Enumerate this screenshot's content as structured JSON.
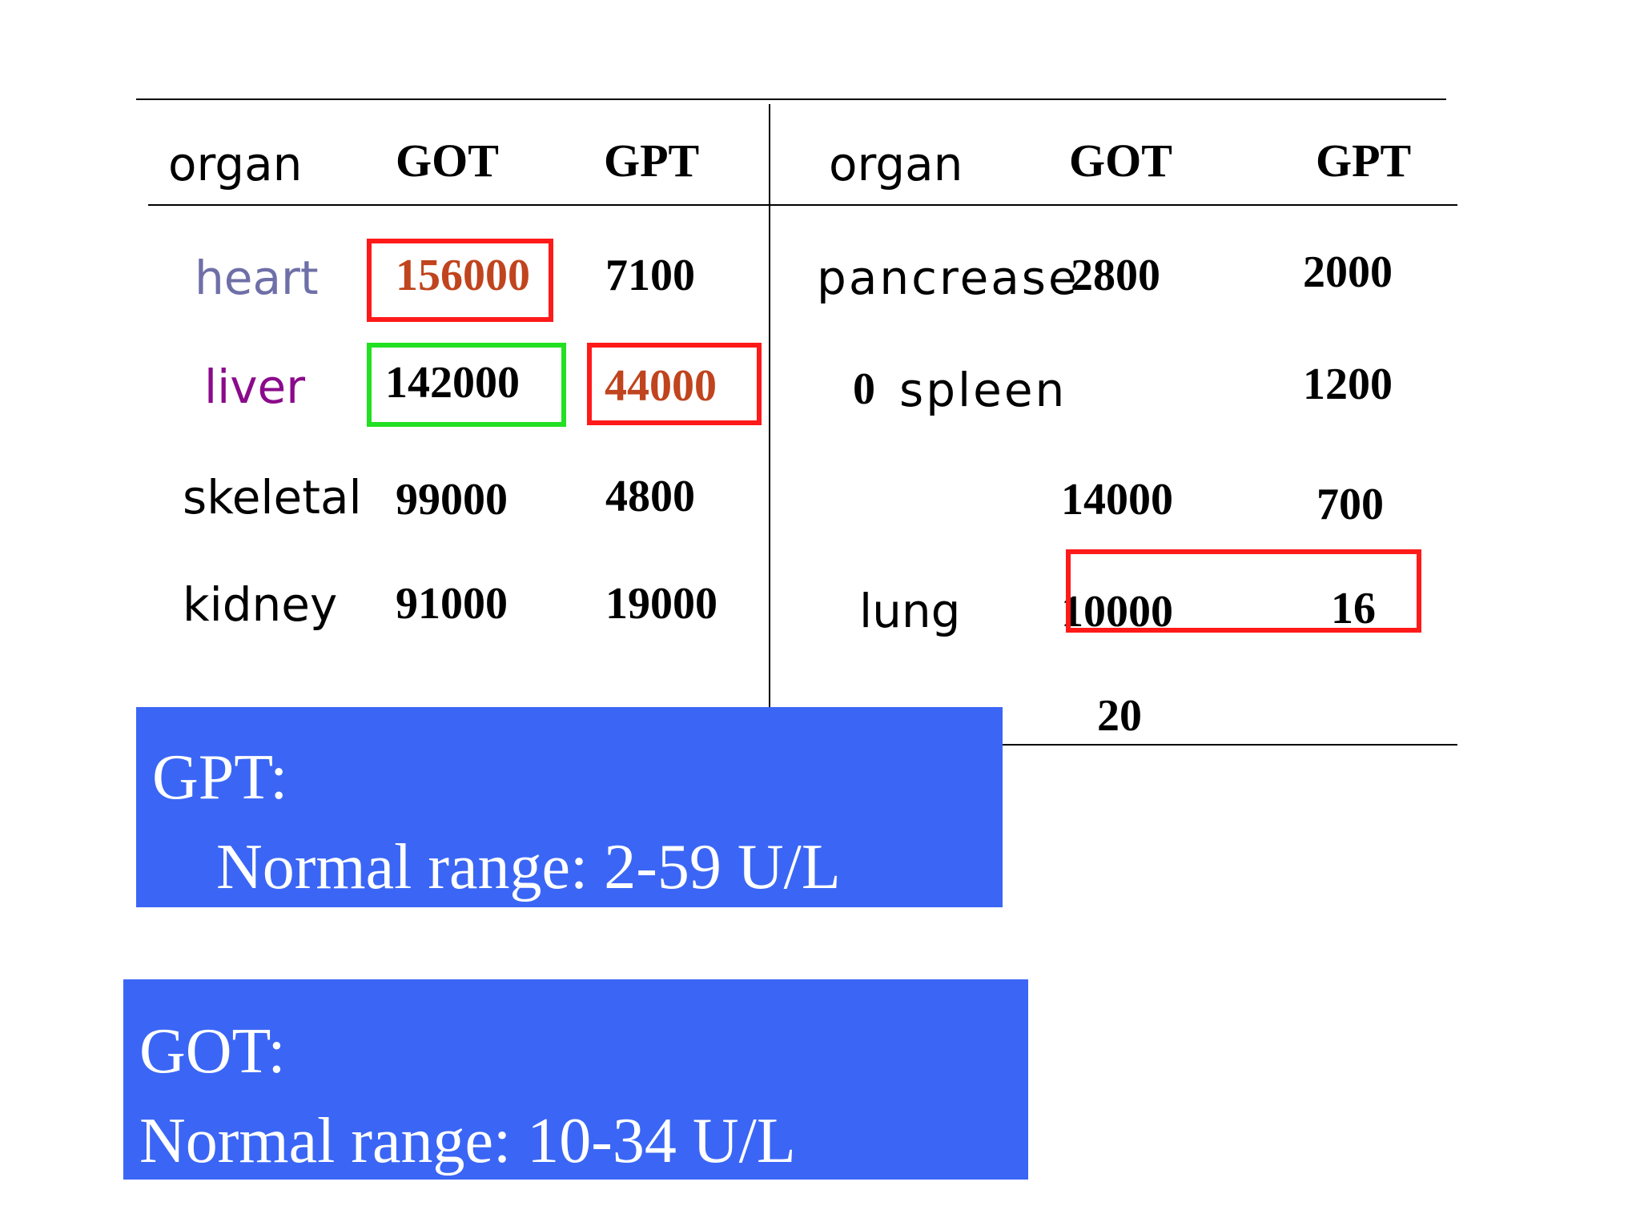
{
  "table": {
    "left": {
      "header": {
        "organ": "organ",
        "got": "GOT",
        "gpt": "GPT"
      },
      "rows": [
        {
          "organ": "heart",
          "got": "156000",
          "gpt": "7100"
        },
        {
          "organ": "liver",
          "got": "142000",
          "gpt": "44000"
        },
        {
          "organ": "skeletal",
          "got": "99000",
          "gpt": "4800"
        },
        {
          "organ": "kidney",
          "got": "91000",
          "gpt": "19000"
        }
      ]
    },
    "right": {
      "header": {
        "organ": "organ",
        "got": "GOT",
        "gpt": "GPT"
      },
      "rows": [
        {
          "organ": "pancrease",
          "got": "2800",
          "gpt": "2000"
        },
        {
          "prefix": "0",
          "organ": "spleen",
          "gpt": "1200"
        },
        {
          "got": "14000",
          "gpt": "700"
        },
        {
          "organ": "lung",
          "got": "10000",
          "gpt": "16"
        },
        {
          "got": "20"
        }
      ]
    }
  },
  "colors": {
    "heart_label": "#6f6fa8",
    "liver_label": "#8b0a8b",
    "highlight_value": "#c0441e",
    "red_box": "#ff1a1a",
    "green_box": "#22e022",
    "info_box": "#3b66f5"
  },
  "info_boxes": {
    "gpt": {
      "title": "GPT:",
      "range": "Normal range:  2-59 U/L"
    },
    "got": {
      "title": "GOT:",
      "range": "Normal range: 10-34 U/L"
    }
  }
}
